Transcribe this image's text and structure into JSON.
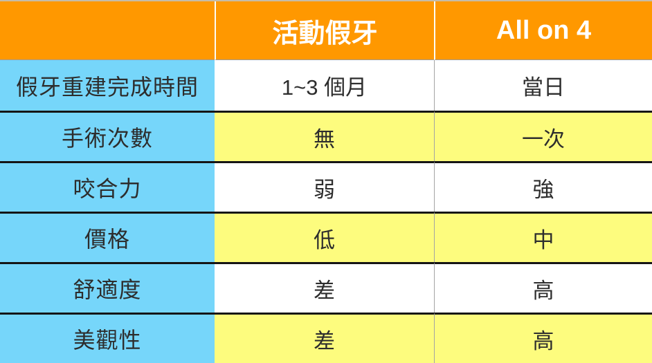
{
  "table": {
    "columns": [
      {
        "label": ""
      },
      {
        "label": "活動假牙"
      },
      {
        "label": "All on 4"
      }
    ],
    "rows": [
      {
        "label": "假牙重建完成時間",
        "values": [
          "1~3 個月",
          "當日"
        ]
      },
      {
        "label": "手術次數",
        "values": [
          "無",
          "一次"
        ]
      },
      {
        "label": "咬合力",
        "values": [
          "弱",
          "強"
        ]
      },
      {
        "label": "價格",
        "values": [
          "低",
          "中"
        ]
      },
      {
        "label": "舒適度",
        "values": [
          "差",
          "高"
        ]
      },
      {
        "label": "美觀性",
        "values": [
          "差",
          "高"
        ]
      }
    ]
  },
  "colors": {
    "header_bg": "#ff9800",
    "header_text": "#ffffff",
    "label_column_bg": "#76d6fa",
    "alt_row_bg": "#fdfc7e",
    "plain_row_bg": "#ffffff",
    "body_text": "#2d2d2d",
    "row_divider": "#151515",
    "column_divider": "#a3a3a3"
  },
  "chart_data": {
    "type": "table",
    "title": "",
    "columns": [
      "",
      "活動假牙",
      "All on 4"
    ],
    "rows": [
      [
        "假牙重建完成時間",
        "1~3 個月",
        "當日"
      ],
      [
        "手術次數",
        "無",
        "一次"
      ],
      [
        "咬合力",
        "弱",
        "強"
      ],
      [
        "價格",
        "低",
        "中"
      ],
      [
        "舒適度",
        "差",
        "高"
      ],
      [
        "美觀性",
        "差",
        "高"
      ]
    ],
    "layout": {
      "header_position": "top",
      "label_column_position": "left",
      "row_striping": [
        "white",
        "yellow",
        "white",
        "yellow",
        "white",
        "yellow"
      ]
    }
  }
}
